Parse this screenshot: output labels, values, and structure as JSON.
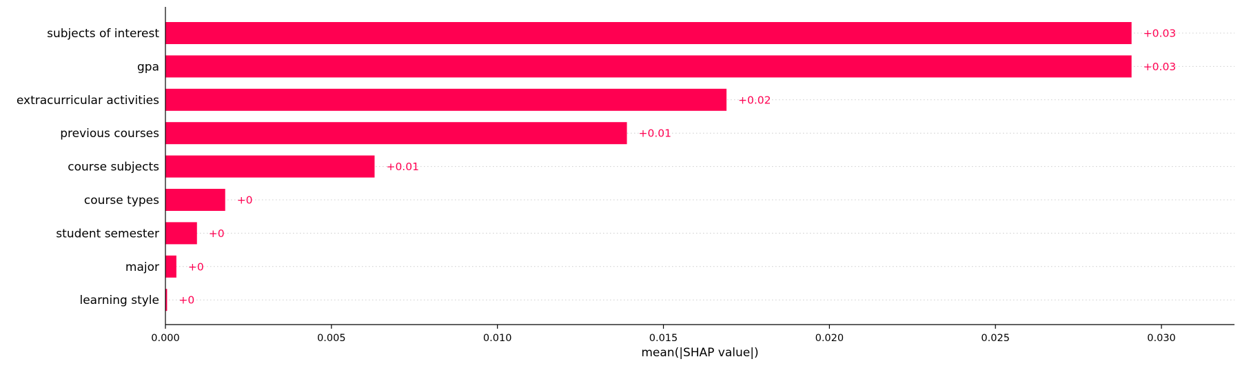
{
  "chart_data": {
    "type": "bar",
    "orientation": "horizontal",
    "title": "",
    "xlabel": "mean(|SHAP value|)",
    "ylabel": "",
    "categories": [
      "subjects of interest",
      "gpa",
      "extracurricular activities",
      "previous courses",
      "course subjects",
      "course types",
      "student semester",
      "major",
      "learning style"
    ],
    "values": [
      0.0291,
      0.0291,
      0.0169,
      0.0139,
      0.0063,
      0.0018,
      0.00095,
      0.00033,
      5e-05
    ],
    "value_labels": [
      "+0.03",
      "+0.03",
      "+0.02",
      "+0.01",
      "+0.01",
      "+0",
      "+0",
      "+0",
      "+0"
    ],
    "xlim": [
      0,
      0.0322
    ],
    "xticks": [
      0.0,
      0.005,
      0.01,
      0.015,
      0.02,
      0.025,
      0.03
    ],
    "xtick_labels": [
      "0.000",
      "0.005",
      "0.010",
      "0.015",
      "0.020",
      "0.025",
      "0.030"
    ],
    "grid": "dotted horizontal lines per category",
    "legend": "none",
    "colors": {
      "bar": "#ff0051",
      "value_label": "#ff0051",
      "axis": "#000000",
      "gridline": "#cccccc"
    }
  }
}
